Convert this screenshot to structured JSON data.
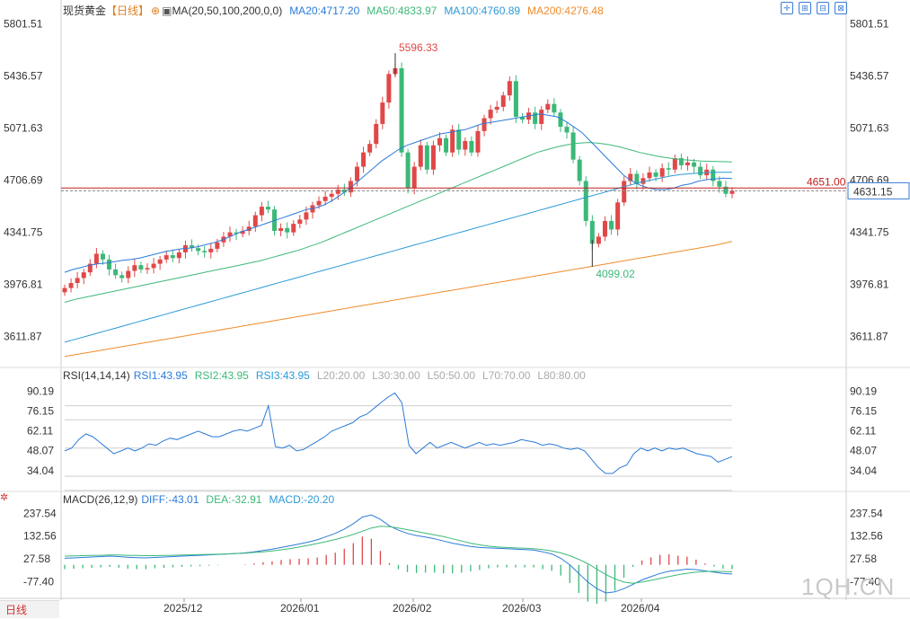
{
  "header": {
    "symbol": "现货黄金",
    "period_tag": "【日线】",
    "ma_label": "MA(20,50,100,200,0,0)",
    "ma20": "MA20:4717.20",
    "ma50": "MA50:4833.97",
    "ma100": "MA100:4760.89",
    "ma200": "MA200:4276.48"
  },
  "rsi_header": {
    "label": "RSI(14,14,14)",
    "rsi1": "RSI1:43.95",
    "rsi2": "RSI2:43.95",
    "rsi3": "RSI3:43.95",
    "l20": "L20:20.00",
    "l30": "L30:30.00",
    "l50": "L50:50.00",
    "l70": "L70:70.00",
    "l80": "L80:80.00"
  },
  "macd_header": {
    "label": "MACD(26,12,9)",
    "diff": "DIFF:-43.01",
    "dea": "DEA:-32.91",
    "macd": "MACD:-20.20"
  },
  "period_button": "日线",
  "watermark": "1QH.CN",
  "colors": {
    "up": "#e04848",
    "down": "#3cb878",
    "ma20": "#2c7bd8",
    "ma50": "#3cb878",
    "ma100": "#2c9ad8",
    "ma200": "#f08c2a",
    "price_line": "#c02020",
    "current_line": "#888888"
  },
  "chart_data": [
    {
      "type": "candlestick",
      "yticks": [
        "5801.51",
        "5436.57",
        "5071.63",
        "4706.69",
        "4341.75",
        "3976.81",
        "3611.87"
      ],
      "ylim": [
        3450,
        5830
      ],
      "xticks": [
        "2025/12",
        "2026/01",
        "2026/02",
        "2026/03",
        "2026/04"
      ],
      "annotations": {
        "high": "5596.33",
        "low": "4099.02",
        "reference_price": "4651.00",
        "current_price": "4631.15"
      },
      "close": [
        3950,
        3985,
        4020,
        4060,
        4120,
        4190,
        4150,
        4080,
        4040,
        4020,
        4070,
        4110,
        4080,
        4090,
        4120,
        4150,
        4180,
        4160,
        4200,
        4250,
        4230,
        4210,
        4200,
        4225,
        4270,
        4310,
        4340,
        4330,
        4350,
        4380,
        4460,
        4520,
        4500,
        4350,
        4370,
        4340,
        4400,
        4430,
        4480,
        4530,
        4560,
        4590,
        4610,
        4640,
        4620,
        4700,
        4800,
        4900,
        4960,
        5100,
        5250,
        5450,
        5490,
        4900,
        4650,
        4800,
        4950,
        4780,
        4950,
        5000,
        4900,
        5060,
        4920,
        4980,
        4900,
        5050,
        5140,
        5200,
        5220,
        5300,
        5400,
        5150,
        5130,
        5180,
        5100,
        5200,
        5240,
        5180,
        5080,
        5040,
        4850,
        4700,
        4420,
        4260,
        4310,
        4420,
        4360,
        4550,
        4700,
        4750,
        4680,
        4720,
        4760,
        4730,
        4790,
        4780,
        4860,
        4810,
        4830,
        4800,
        4740,
        4780,
        4700,
        4660,
        4610,
        4631
      ],
      "ma20": [
        4060,
        4080,
        4095,
        4110,
        4120,
        4125,
        4135,
        4145,
        4150,
        4160,
        4175,
        4190,
        4205,
        4215,
        4225,
        4230,
        4240,
        4255,
        4270,
        4290,
        4315,
        4340,
        4360,
        4380,
        4400,
        4420,
        4440,
        4460,
        4480,
        4500,
        4510,
        4530,
        4560,
        4600,
        4640,
        4690,
        4740,
        4790,
        4840,
        4880,
        4920,
        4950,
        4970,
        4990,
        5010,
        5030,
        5040,
        5050,
        5060,
        5080,
        5100,
        5110,
        5120,
        5130,
        5140,
        5150,
        5160,
        5170,
        5160,
        5150,
        5120,
        5080,
        5040,
        4980,
        4920,
        4860,
        4800,
        4740,
        4700,
        4670,
        4650,
        4640,
        4640,
        4650,
        4670,
        4680,
        4700,
        4710,
        4715,
        4720,
        4717
      ],
      "ma50": [
        3850,
        3870,
        3885,
        3900,
        3915,
        3930,
        3945,
        3960,
        3975,
        3990,
        4005,
        4020,
        4035,
        4050,
        4065,
        4080,
        4095,
        4110,
        4125,
        4140,
        4160,
        4180,
        4200,
        4220,
        4245,
        4270,
        4300,
        4330,
        4360,
        4390,
        4420,
        4450,
        4480,
        4510,
        4540,
        4570,
        4600,
        4630,
        4660,
        4690,
        4720,
        4750,
        4780,
        4810,
        4840,
        4870,
        4900,
        4920,
        4940,
        4955,
        4965,
        4970,
        4965,
        4955,
        4940,
        4920,
        4900,
        4885,
        4870,
        4860,
        4850,
        4845,
        4840,
        4838,
        4836,
        4834
      ],
      "ma100": [
        3570,
        3590,
        3610,
        3630,
        3650,
        3670,
        3690,
        3710,
        3730,
        3750,
        3770,
        3790,
        3810,
        3830,
        3850,
        3870,
        3890,
        3910,
        3930,
        3950,
        3970,
        3990,
        4010,
        4030,
        4050,
        4070,
        4090,
        4110,
        4130,
        4150,
        4170,
        4190,
        4210,
        4230,
        4250,
        4270,
        4290,
        4310,
        4330,
        4350,
        4370,
        4390,
        4410,
        4430,
        4450,
        4470,
        4490,
        4510,
        4530,
        4550,
        4570,
        4590,
        4610,
        4630,
        4650,
        4670,
        4690,
        4705,
        4720,
        4735,
        4745,
        4752,
        4757,
        4760,
        4761,
        4761
      ],
      "ma200": [
        3470,
        3490,
        3510,
        3530,
        3550,
        3570,
        3590,
        3610,
        3630,
        3650,
        3670,
        3690,
        3710,
        3730,
        3750,
        3770,
        3790,
        3810,
        3830,
        3850,
        3870,
        3890,
        3910,
        3930,
        3950,
        3970,
        3990,
        4010,
        4030,
        4050,
        4070,
        4090,
        4110,
        4130,
        4150,
        4170,
        4190,
        4210,
        4230,
        4250,
        4276
      ]
    },
    {
      "type": "line",
      "name_label": "RSI",
      "yticks": [
        "90.19",
        "76.15",
        "62.11",
        "48.07",
        "34.04"
      ],
      "ylim": [
        25,
        95
      ],
      "reference_levels": [
        20,
        30,
        50,
        70,
        80
      ],
      "rsi1": [
        48,
        50,
        56,
        60,
        58,
        54,
        50,
        46,
        48,
        50,
        48,
        50,
        53,
        52,
        55,
        57,
        56,
        58,
        60,
        62,
        60,
        58,
        58,
        60,
        62,
        63,
        62,
        64,
        66,
        80,
        51,
        50,
        52,
        48,
        49,
        52,
        55,
        58,
        62,
        64,
        66,
        68,
        72,
        74,
        78,
        82,
        86,
        89,
        82,
        52,
        46,
        50,
        54,
        50,
        52,
        54,
        52,
        50,
        52,
        54,
        52,
        53,
        52,
        53,
        54,
        56,
        55,
        54,
        52,
        53,
        52,
        50,
        49,
        50,
        48,
        42,
        36,
        32,
        32,
        36,
        38,
        46,
        50,
        48,
        50,
        48,
        50,
        49,
        50,
        48,
        46,
        45,
        44,
        40,
        42,
        43.95
      ]
    },
    {
      "type": "bar",
      "name_label": "MACD",
      "yticks": [
        "237.54",
        "132.56",
        "27.58",
        "-77.40"
      ],
      "ylim": [
        -130,
        260
      ],
      "diff": [
        30,
        32,
        34,
        36,
        38,
        40,
        38,
        35,
        33,
        32,
        34,
        36,
        38,
        40,
        42,
        44,
        46,
        48,
        50,
        52,
        55,
        60,
        66,
        72,
        80,
        88,
        96,
        105,
        115,
        130,
        145,
        165,
        190,
        220,
        230,
        210,
        180,
        160,
        145,
        135,
        128,
        120,
        110,
        100,
        92,
        85,
        80,
        78,
        76,
        74,
        72,
        70,
        68,
        60,
        50,
        30,
        0,
        -40,
        -80,
        -110,
        -130,
        -125,
        -110,
        -90,
        -70,
        -55,
        -40,
        -30,
        -25,
        -20,
        -22,
        -28,
        -34,
        -40,
        -43
      ],
      "dea": [
        40,
        41,
        42,
        43,
        44,
        45,
        45,
        44,
        43,
        42,
        42,
        43,
        44,
        45,
        46,
        47,
        48,
        49,
        50,
        52,
        54,
        57,
        60,
        64,
        69,
        75,
        82,
        90,
        98,
        107,
        117,
        128,
        140,
        155,
        170,
        178,
        176,
        170,
        162,
        154,
        146,
        138,
        130,
        120,
        110,
        100,
        92,
        86,
        82,
        80,
        78,
        76,
        74,
        70,
        64,
        55,
        42,
        25,
        5,
        -20,
        -45,
        -65,
        -80,
        -85,
        -80,
        -72,
        -63,
        -54,
        -46,
        -39,
        -34,
        -31,
        -30,
        -31,
        -33
      ],
      "macd_hist_note": "2 × (DIFF − DEA)",
      "macd": [
        -20,
        -18,
        -16,
        -14,
        -12,
        -10,
        -14,
        -18,
        -20,
        -20,
        -16,
        -14,
        -12,
        -10,
        -8,
        -6,
        -4,
        -2,
        0,
        0,
        2,
        6,
        12,
        16,
        22,
        26,
        28,
        30,
        34,
        46,
        56,
        74,
        100,
        130,
        120,
        64,
        8,
        -20,
        -34,
        -38,
        -36,
        -36,
        -40,
        -40,
        -36,
        -30,
        -24,
        -16,
        -12,
        -12,
        -12,
        -12,
        -12,
        -20,
        -28,
        -50,
        -84,
        -130,
        -170,
        -180,
        -170,
        -120,
        -60,
        -10,
        20,
        34,
        46,
        48,
        42,
        38,
        24,
        6,
        -8,
        -18,
        -20
      ]
    }
  ]
}
